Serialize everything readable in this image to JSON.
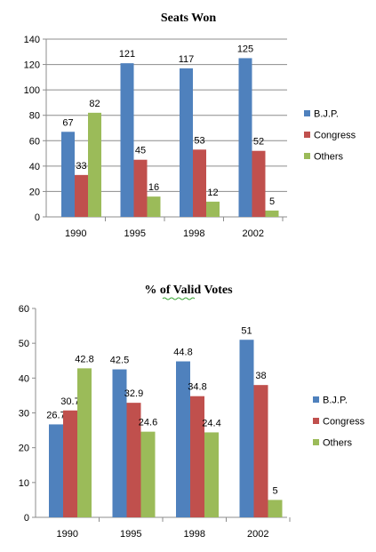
{
  "colors": {
    "bjp": "#4f81bd",
    "congress": "#c0504d",
    "others": "#9bbb59"
  },
  "chart_data": [
    {
      "type": "bar",
      "title": "Seats Won",
      "categories": [
        "1990",
        "1995",
        "1998",
        "2002"
      ],
      "ylim": [
        0,
        140
      ],
      "yticks": [
        0,
        20,
        40,
        60,
        80,
        100,
        120,
        140
      ],
      "grid": true,
      "legend": "right",
      "series": [
        {
          "name": "B.J.P.",
          "values": [
            67,
            121,
            117,
            125
          ]
        },
        {
          "name": "Congress",
          "values": [
            33,
            45,
            53,
            52
          ]
        },
        {
          "name": "Others",
          "values": [
            82,
            16,
            12,
            5
          ]
        }
      ]
    },
    {
      "type": "bar",
      "title": "% of  Valid Votes",
      "categories": [
        "1990",
        "1995",
        "1998",
        "2002"
      ],
      "ylim": [
        0,
        60
      ],
      "yticks": [
        0,
        10,
        20,
        30,
        40,
        50,
        60
      ],
      "grid": false,
      "legend": "right",
      "series": [
        {
          "name": "B.J.P.",
          "values": [
            26.7,
            42.5,
            44.8,
            51
          ]
        },
        {
          "name": "Congress",
          "values": [
            30.7,
            32.9,
            34.8,
            38
          ]
        },
        {
          "name": "Others",
          "values": [
            42.8,
            24.6,
            24.4,
            5
          ]
        }
      ]
    }
  ]
}
